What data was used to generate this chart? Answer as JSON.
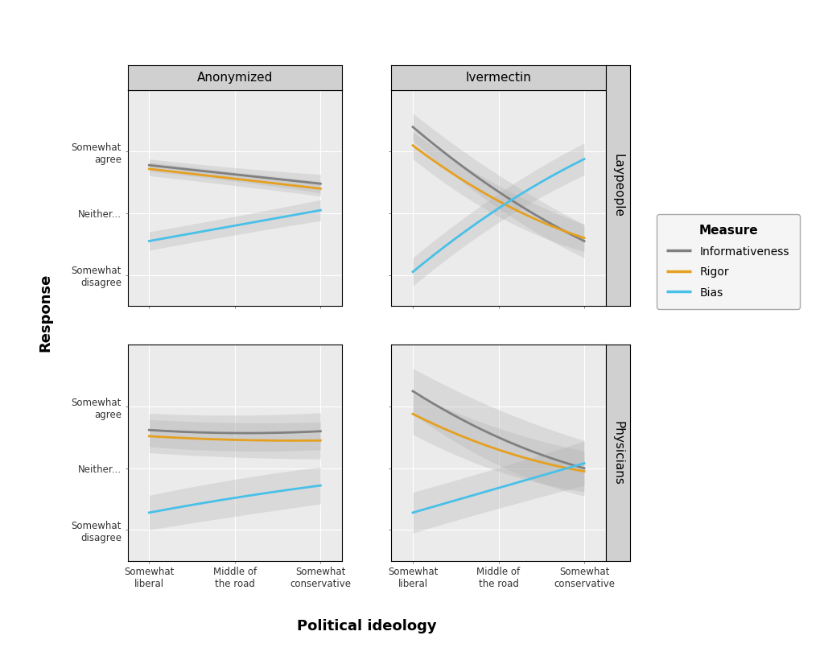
{
  "xlabel": "Political ideology",
  "ylabel": "Response",
  "col_labels": [
    "Anonymized",
    "Ivermectin"
  ],
  "row_labels": [
    "Laypeople",
    "Physicians"
  ],
  "x_tick_labels": [
    "Somewhat\nliberal",
    "Middle of\nthe road",
    "Somewhat\nconservative"
  ],
  "y_tick_labels": [
    "Somewhat\ndisagree",
    "Neither...",
    "Somewhat\nagree"
  ],
  "y_ticks": [
    2,
    3,
    4
  ],
  "x_values": [
    1,
    2,
    3
  ],
  "measures": [
    "Informativeness",
    "Rigor",
    "Bias"
  ],
  "colors": {
    "Informativeness": "#808080",
    "Rigor": "#E5A020",
    "Bias": "#49C0E8"
  },
  "line_width": 2.0,
  "ci_alpha": 0.3,
  "panel_bg": "#EBEBEB",
  "grid_color": "#FFFFFF",
  "header_bg": "#D0D0D0",
  "lines": {
    "Anonymized_Laypeople": {
      "Informativeness": {
        "mean": [
          3.78,
          3.63,
          3.48
        ],
        "ci_low": [
          3.68,
          3.52,
          3.33
        ],
        "ci_high": [
          3.88,
          3.74,
          3.63
        ]
      },
      "Rigor": {
        "mean": [
          3.72,
          3.56,
          3.4
        ],
        "ci_low": [
          3.61,
          3.45,
          3.28
        ],
        "ci_high": [
          3.83,
          3.67,
          3.52
        ]
      },
      "Bias": {
        "mean": [
          2.55,
          2.8,
          3.05
        ],
        "ci_low": [
          2.4,
          2.65,
          2.88
        ],
        "ci_high": [
          2.7,
          2.95,
          3.22
        ]
      }
    },
    "Ivermectin_Laypeople": {
      "Informativeness": {
        "mean": [
          4.4,
          3.35,
          2.55
        ],
        "ci_low": [
          4.18,
          3.08,
          2.28
        ],
        "ci_high": [
          4.62,
          3.62,
          2.82
        ]
      },
      "Rigor": {
        "mean": [
          4.1,
          3.2,
          2.6
        ],
        "ci_low": [
          3.88,
          2.95,
          2.38
        ],
        "ci_high": [
          4.32,
          3.45,
          2.82
        ]
      },
      "Bias": {
        "mean": [
          2.05,
          3.08,
          3.88
        ],
        "ci_low": [
          1.82,
          2.85,
          3.62
        ],
        "ci_high": [
          2.28,
          3.32,
          4.14
        ]
      }
    },
    "Anonymized_Physicians": {
      "Informativeness": {
        "mean": [
          3.62,
          3.57,
          3.6
        ],
        "ci_low": [
          3.35,
          3.28,
          3.3
        ],
        "ci_high": [
          3.89,
          3.86,
          3.9
        ]
      },
      "Rigor": {
        "mean": [
          3.52,
          3.46,
          3.45
        ],
        "ci_low": [
          3.25,
          3.18,
          3.15
        ],
        "ci_high": [
          3.79,
          3.74,
          3.75
        ]
      },
      "Bias": {
        "mean": [
          2.28,
          2.52,
          2.72
        ],
        "ci_low": [
          2.0,
          2.22,
          2.42
        ],
        "ci_high": [
          2.56,
          2.82,
          3.02
        ]
      }
    },
    "Ivermectin_Physicians": {
      "Informativeness": {
        "mean": [
          4.25,
          3.5,
          3.0
        ],
        "ci_low": [
          3.88,
          3.05,
          2.55
        ],
        "ci_high": [
          4.62,
          3.95,
          3.45
        ]
      },
      "Rigor": {
        "mean": [
          3.88,
          3.3,
          2.95
        ],
        "ci_low": [
          3.55,
          2.95,
          2.62
        ],
        "ci_high": [
          4.21,
          3.65,
          3.28
        ]
      },
      "Bias": {
        "mean": [
          2.28,
          2.68,
          3.08
        ],
        "ci_low": [
          1.95,
          2.35,
          2.72
        ],
        "ci_high": [
          2.61,
          3.01,
          3.44
        ]
      }
    }
  },
  "ylim": [
    1.5,
    5.0
  ],
  "figsize": [
    10.24,
    8.1
  ],
  "dpi": 100
}
